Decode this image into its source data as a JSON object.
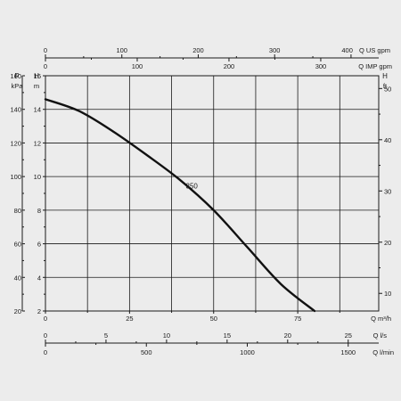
{
  "chart_data": {
    "type": "line",
    "title": "",
    "series": [
      {
        "name": "350",
        "x": [
          0,
          10,
          20,
          30,
          40,
          50,
          60,
          70,
          80
        ],
        "y": [
          14.6,
          13.9,
          12.7,
          11.3,
          9.8,
          8.0,
          5.8,
          3.6,
          2.0
        ]
      }
    ],
    "curve_label": "350",
    "primary_x": {
      "unit_label": "Q m³/h",
      "range": [
        0,
        100
      ],
      "ticks": [
        0,
        25,
        50,
        75
      ]
    },
    "primary_y": {
      "unit_label": "m",
      "symbol": "H",
      "range": [
        2,
        16
      ],
      "ticks": [
        2,
        4,
        6,
        8,
        10,
        12,
        14,
        16
      ]
    },
    "secondary_y_left": {
      "symbol": "P",
      "unit_label": "kPa",
      "ticks": [
        20,
        40,
        60,
        80,
        100,
        120,
        140,
        160
      ]
    },
    "secondary_y_right": {
      "symbol": "H",
      "unit_label": "ft",
      "ticks": [
        10,
        20,
        30,
        40,
        50
      ]
    },
    "top_axis_us_gpm": {
      "label": "Q US gpm",
      "ticks": [
        0,
        100,
        200,
        300,
        400
      ]
    },
    "top_axis_imp_gpm": {
      "label": "Q IMP gpm",
      "ticks": [
        0,
        100,
        200,
        300
      ]
    },
    "bottom_axis_ls": {
      "label": "Q l/s",
      "ticks": [
        0,
        5,
        10,
        15,
        20,
        25
      ]
    },
    "bottom_axis_lmin": {
      "label": "Q l/min",
      "ticks": [
        0,
        500,
        1000,
        1500
      ]
    },
    "grid": true
  },
  "colors": {
    "background": "#ececec",
    "ink": "#1a1a1a",
    "curve": "#111111"
  }
}
